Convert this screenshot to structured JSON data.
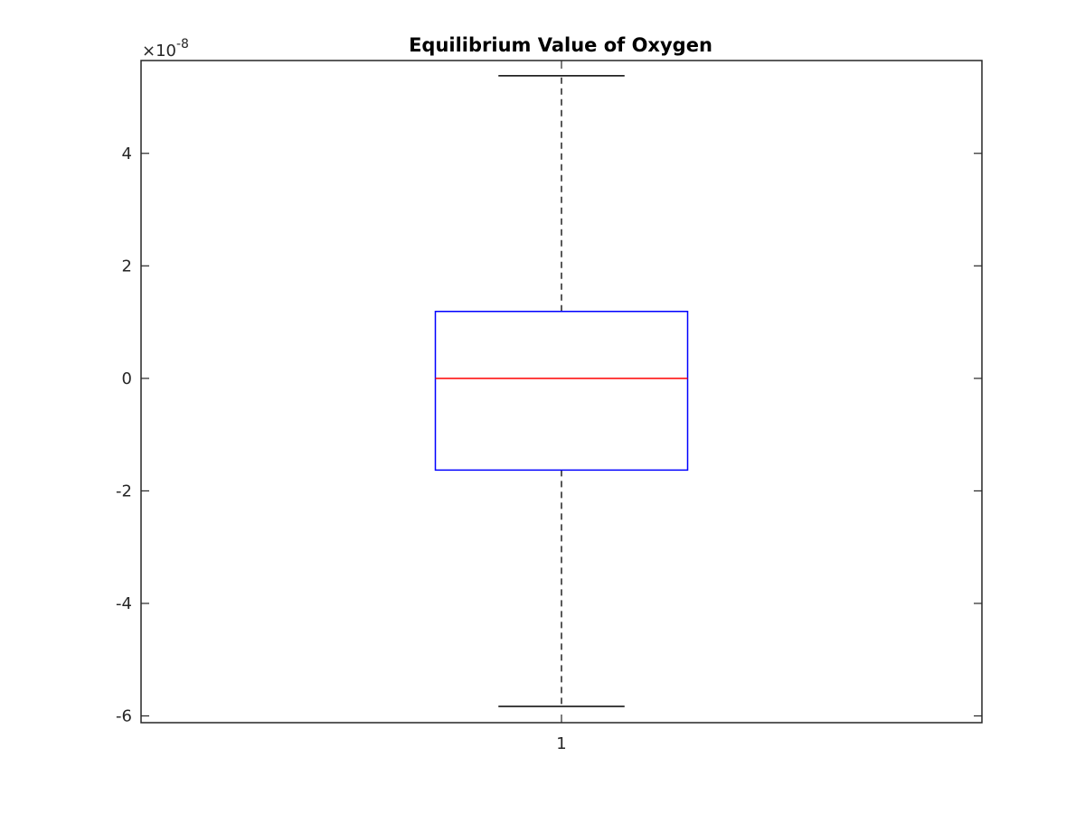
{
  "chart_data": {
    "type": "box",
    "title": "Equilibrium Value of Oxygen",
    "xlabel": "",
    "ylabel": "",
    "categories": [
      "1"
    ],
    "y_exponent_label": "×10",
    "y_exponent_power": "-8",
    "y_scale_factor": 1e-08,
    "ylim": [
      -6.12,
      5.65
    ],
    "yticks": [
      -6,
      -4,
      -2,
      0,
      2,
      4
    ],
    "ytick_labels": [
      "-6",
      "-4",
      "-2",
      "0",
      "2",
      "4"
    ],
    "grid": false,
    "boxes": [
      {
        "category": "1",
        "whisker_low": -5.83,
        "q1": -1.63,
        "median": 0.0,
        "q3": 1.19,
        "whisker_high": 5.38
      }
    ],
    "colors": {
      "box": "#0000ff",
      "median": "#ff0000",
      "whisker": "#000000",
      "axes": "#262626"
    }
  }
}
